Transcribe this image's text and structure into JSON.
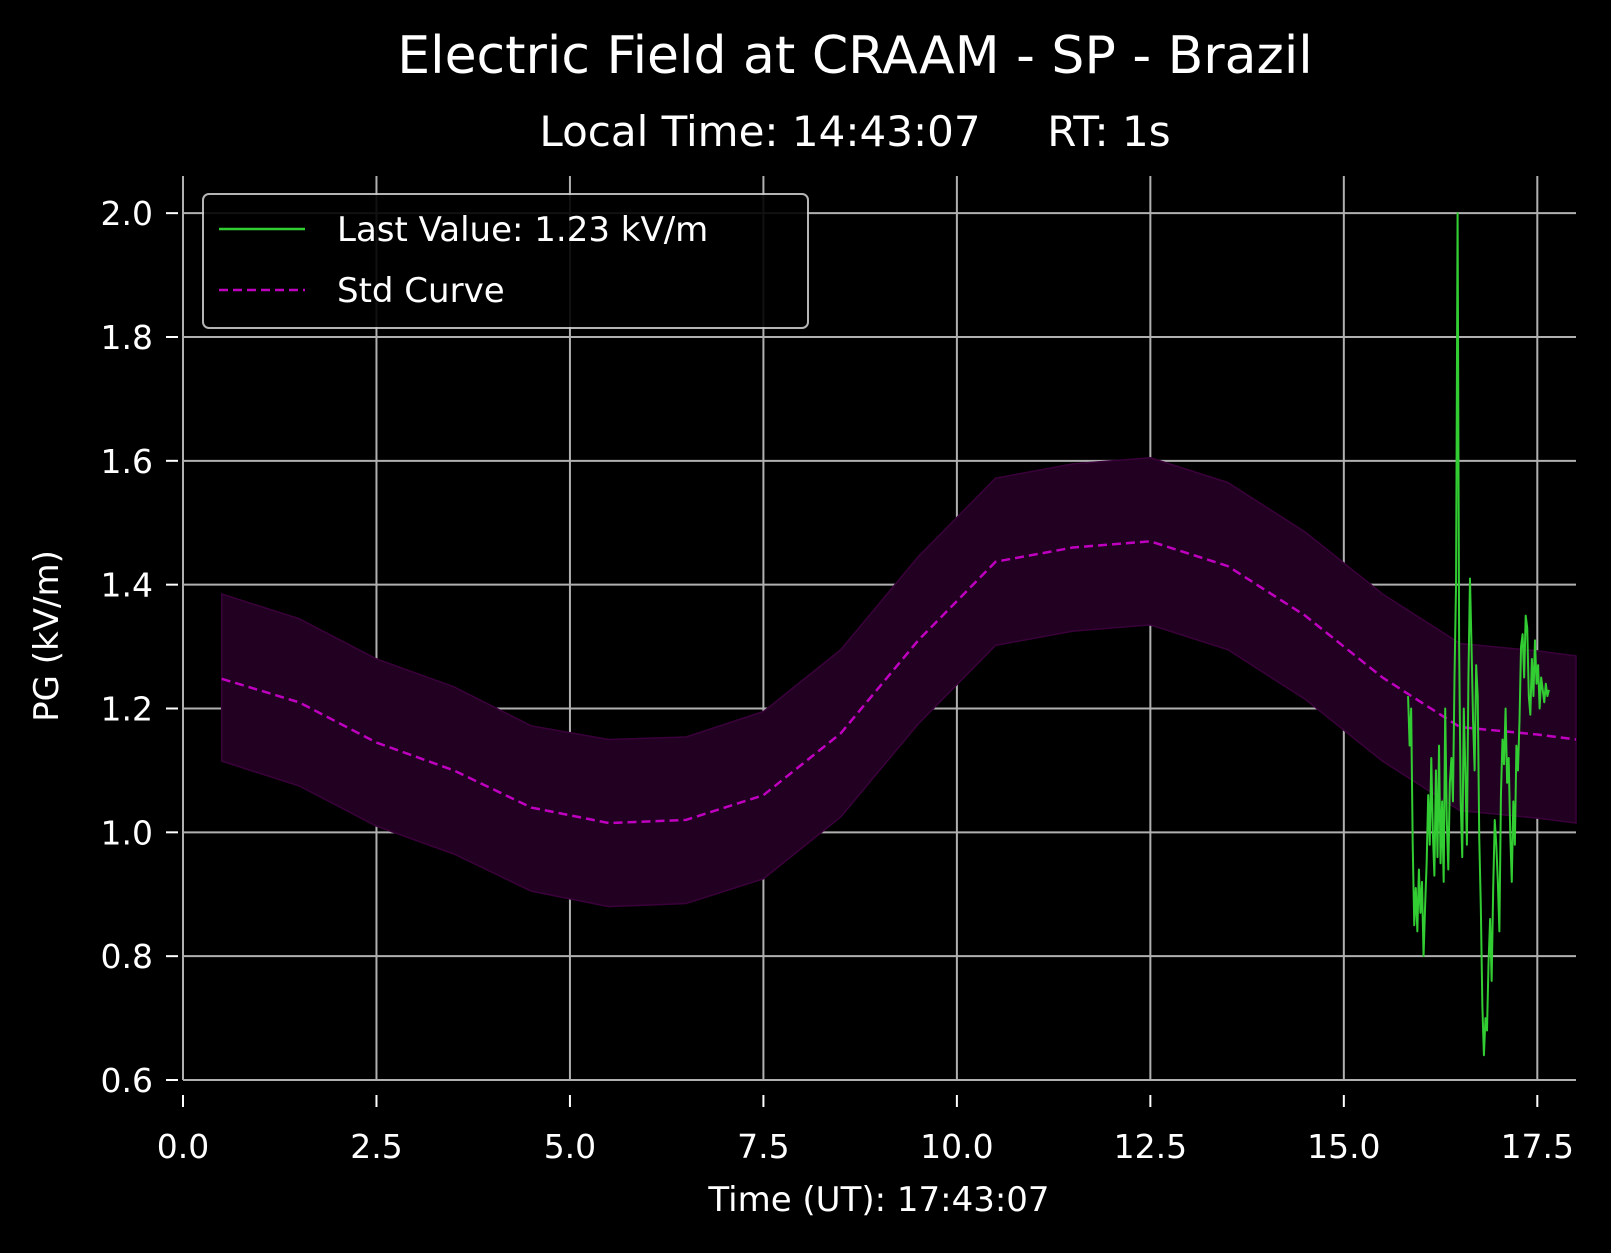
{
  "chart_data": {
    "type": "line",
    "title": "Electric Field at CRAAM - SP - Brazil",
    "subtitle": "Local Time: 14:43:07     RT: 1s",
    "xlabel": "Time (UT): 17:43:07",
    "ylabel": "PG (kV/m)",
    "xlim": [
      0.0,
      18.0
    ],
    "ylim": [
      0.6,
      2.06
    ],
    "xticks": [
      0.0,
      2.5,
      5.0,
      7.5,
      10.0,
      12.5,
      15.0,
      17.5
    ],
    "xtick_labels": [
      "0.0",
      "2.5",
      "5.0",
      "7.5",
      "10.0",
      "12.5",
      "15.0",
      "17.5"
    ],
    "yticks": [
      0.6,
      0.8,
      1.0,
      1.2,
      1.4,
      1.6,
      1.8,
      2.0
    ],
    "ytick_labels": [
      "0.6",
      "0.8",
      "1.0",
      "1.2",
      "1.4",
      "1.6",
      "1.8",
      "2.0"
    ],
    "grid": true,
    "legend_position": "top-left",
    "colors": {
      "background": "#000000",
      "grid": "#b0b0b0",
      "last_value": "#32cd32",
      "std_curve": "#bf00bf",
      "std_band": "#210021"
    },
    "series": [
      {
        "name": "Last Value: 1.23 kV/m",
        "style": "solid",
        "x": [
          15.83,
          15.85,
          15.87,
          15.89,
          15.91,
          15.93,
          15.95,
          15.97,
          15.99,
          16.01,
          16.03,
          16.05,
          16.07,
          16.09,
          16.11,
          16.13,
          16.15,
          16.17,
          16.19,
          16.21,
          16.23,
          16.25,
          16.27,
          16.29,
          16.31,
          16.33,
          16.35,
          16.37,
          16.39,
          16.41,
          16.43,
          16.45,
          16.47,
          16.49,
          16.51,
          16.53,
          16.55,
          16.57,
          16.59,
          16.61,
          16.63,
          16.65,
          16.67,
          16.69,
          16.71,
          16.73,
          16.75,
          16.77,
          16.79,
          16.81,
          16.83,
          16.85,
          16.87,
          16.89,
          16.91,
          16.93,
          16.95,
          16.97,
          16.99,
          17.01,
          17.03,
          17.05,
          17.07,
          17.09,
          17.11,
          17.13,
          17.15,
          17.17,
          17.19,
          17.21,
          17.23,
          17.25,
          17.27,
          17.29,
          17.31,
          17.33,
          17.35,
          17.37,
          17.39,
          17.41,
          17.43,
          17.45,
          17.47,
          17.49,
          17.51,
          17.53,
          17.55,
          17.57,
          17.59,
          17.61,
          17.63,
          17.65
        ],
        "y": [
          1.22,
          1.14,
          1.2,
          0.98,
          0.85,
          0.91,
          0.84,
          0.94,
          0.87,
          0.92,
          0.8,
          0.88,
          0.95,
          1.06,
          0.98,
          1.12,
          1.0,
          0.93,
          1.1,
          0.96,
          1.14,
          0.95,
          1.05,
          0.92,
          1.2,
          1.02,
          0.94,
          1.08,
          1.12,
          1.05,
          1.25,
          1.4,
          2.0,
          1.3,
          1.05,
          0.96,
          1.2,
          1.1,
          0.98,
          1.25,
          1.41,
          1.3,
          1.18,
          1.1,
          1.27,
          1.22,
          0.99,
          0.88,
          0.72,
          0.64,
          0.7,
          0.68,
          0.79,
          0.86,
          0.76,
          0.91,
          1.02,
          0.98,
          0.92,
          0.84,
          1.06,
          1.15,
          1.11,
          1.2,
          1.08,
          1.12,
          1.0,
          0.92,
          1.05,
          0.98,
          1.14,
          1.1,
          1.18,
          1.3,
          1.32,
          1.25,
          1.35,
          1.33,
          1.22,
          1.19,
          1.28,
          1.22,
          1.31,
          1.24,
          1.27,
          1.2,
          1.25,
          1.23,
          1.21,
          1.24,
          1.22,
          1.23
        ]
      },
      {
        "name": "Std Curve",
        "style": "dashed",
        "x": [
          0.5,
          1.5,
          2.5,
          3.5,
          4.5,
          5.5,
          6.5,
          7.5,
          8.5,
          9.5,
          10.5,
          11.5,
          12.5,
          13.5,
          14.5,
          15.5,
          16.5,
          17.5,
          18.0
        ],
        "y": [
          1.248,
          1.21,
          1.145,
          1.1,
          1.04,
          1.015,
          1.02,
          1.06,
          1.16,
          1.31,
          1.437,
          1.46,
          1.47,
          1.43,
          1.35,
          1.25,
          1.17,
          1.158,
          1.15
        ],
        "band_upper": [
          1.385,
          1.345,
          1.28,
          1.235,
          1.172,
          1.15,
          1.154,
          1.195,
          1.295,
          1.445,
          1.572,
          1.595,
          1.605,
          1.565,
          1.485,
          1.385,
          1.305,
          1.293,
          1.285
        ],
        "band_lower": [
          1.115,
          1.075,
          1.01,
          0.965,
          0.905,
          0.88,
          0.885,
          0.925,
          1.025,
          1.175,
          1.302,
          1.325,
          1.335,
          1.295,
          1.215,
          1.115,
          1.035,
          1.023,
          1.015
        ]
      }
    ]
  }
}
